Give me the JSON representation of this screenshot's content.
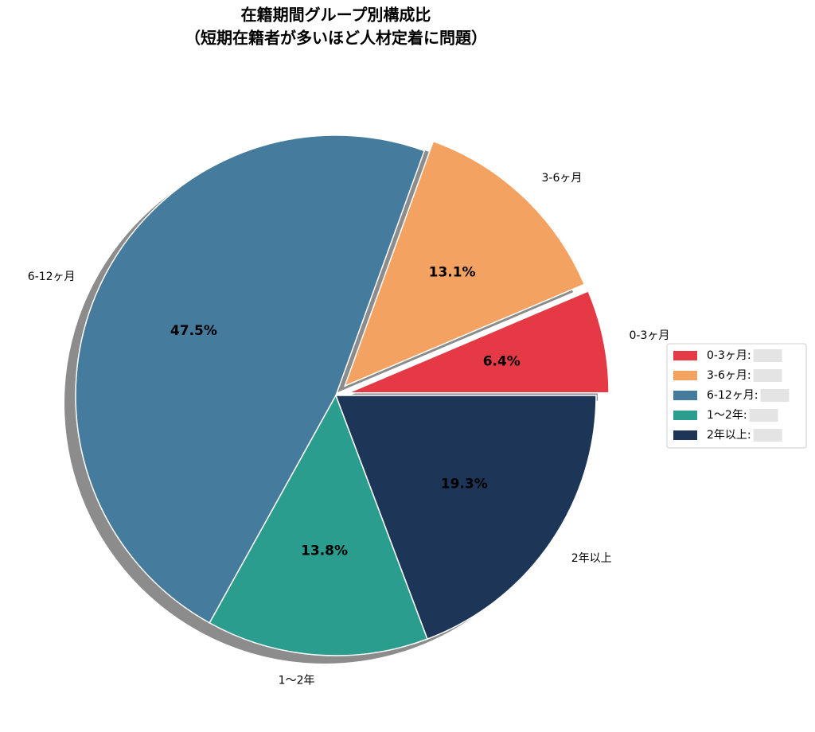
{
  "chart_data": {
    "type": "pie",
    "title": "在籍期間グループ別構成比",
    "subtitle": "（短期在籍者が多いほど人材定着に問題）",
    "categories": [
      "0-3ヶ月",
      "3-6ヶ月",
      "6-12ヶ月",
      "1〜2年",
      "2年以上"
    ],
    "values": [
      6.4,
      13.1,
      47.5,
      13.8,
      19.3
    ],
    "value_labels": [
      "6.4%",
      "13.1%",
      "47.5%",
      "13.8%",
      "19.3%"
    ],
    "colors": [
      "#e63946",
      "#f4a261",
      "#457b9d",
      "#2a9d8f",
      "#1d3557"
    ],
    "explode": [
      0.05,
      0.05,
      0,
      0,
      0
    ],
    "startangle": 0,
    "shadow": true,
    "legend": "right",
    "legend_labels": [
      "0-3ヶ月:",
      "3-6ヶ月:",
      "6-12ヶ月:",
      "1〜2年:",
      "2年以上:"
    ]
  }
}
